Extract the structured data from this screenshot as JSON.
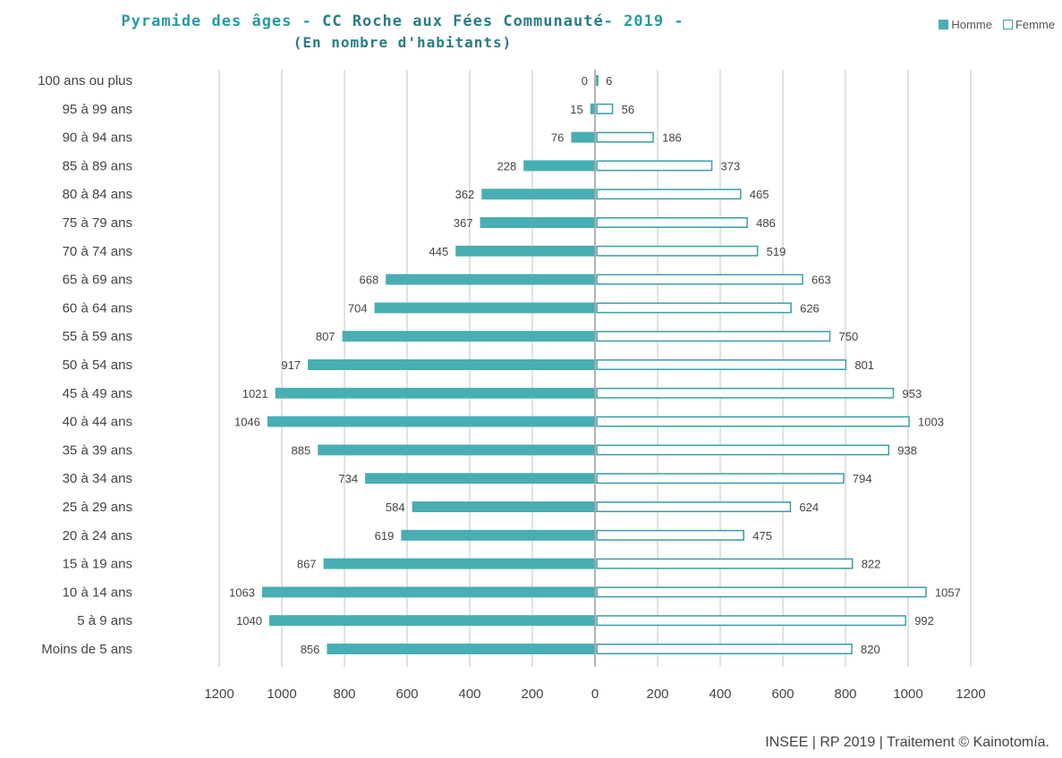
{
  "chart_data": {
    "type": "bar",
    "orientation": "horizontal",
    "title": "Pyramide des âges - CC Roche aux Fées Communauté- 2019 -",
    "title_parts": {
      "prefix": "Pyramide des âges - ",
      "territory": "CC Roche aux Fées Communauté",
      "suffix": "- 2019 -"
    },
    "subtitle": "(En nombre d'habitants)",
    "categories": [
      "100 ans ou plus",
      "95 à 99 ans",
      "90 à 94 ans",
      "85 à 89 ans",
      "80 à 84 ans",
      "75 à 79 ans",
      "70 à 74 ans",
      "65 à 69 ans",
      "60 à 64 ans",
      "55 à 59 ans",
      "50 à 54 ans",
      "45 à 49 ans",
      "40 à 44 ans",
      "35 à 39 ans",
      "30 à 34 ans",
      "25 à 29 ans",
      "20 à 24 ans",
      "15 à 19 ans",
      "10 à 14 ans",
      "5 à 9 ans",
      "Moins de 5 ans"
    ],
    "series": [
      {
        "name": "Homme",
        "color": "#48aeb3",
        "values": [
          0,
          15,
          76,
          228,
          362,
          367,
          445,
          668,
          704,
          807,
          917,
          1021,
          1046,
          885,
          734,
          584,
          619,
          867,
          1063,
          1040,
          856
        ]
      },
      {
        "name": "Femme",
        "color": "#ffffff",
        "stroke": "#3a9ea3",
        "values": [
          6,
          56,
          186,
          373,
          465,
          486,
          519,
          663,
          626,
          750,
          801,
          953,
          1003,
          938,
          794,
          624,
          475,
          822,
          1057,
          992,
          820
        ]
      }
    ],
    "xlim": [
      -1200,
      1200
    ],
    "x_ticks": [
      -1200,
      -1000,
      -800,
      -600,
      -400,
      -200,
      0,
      200,
      400,
      600,
      800,
      1000,
      1200
    ],
    "x_tick_labels": [
      "1200",
      "1000",
      "800",
      "600",
      "400",
      "200",
      "0",
      "200",
      "400",
      "600",
      "800",
      "1000",
      "1200"
    ],
    "grid": true,
    "legend_position": "top-right"
  },
  "source": "INSEE | RP 2019 | Traitement © Kainotomía."
}
